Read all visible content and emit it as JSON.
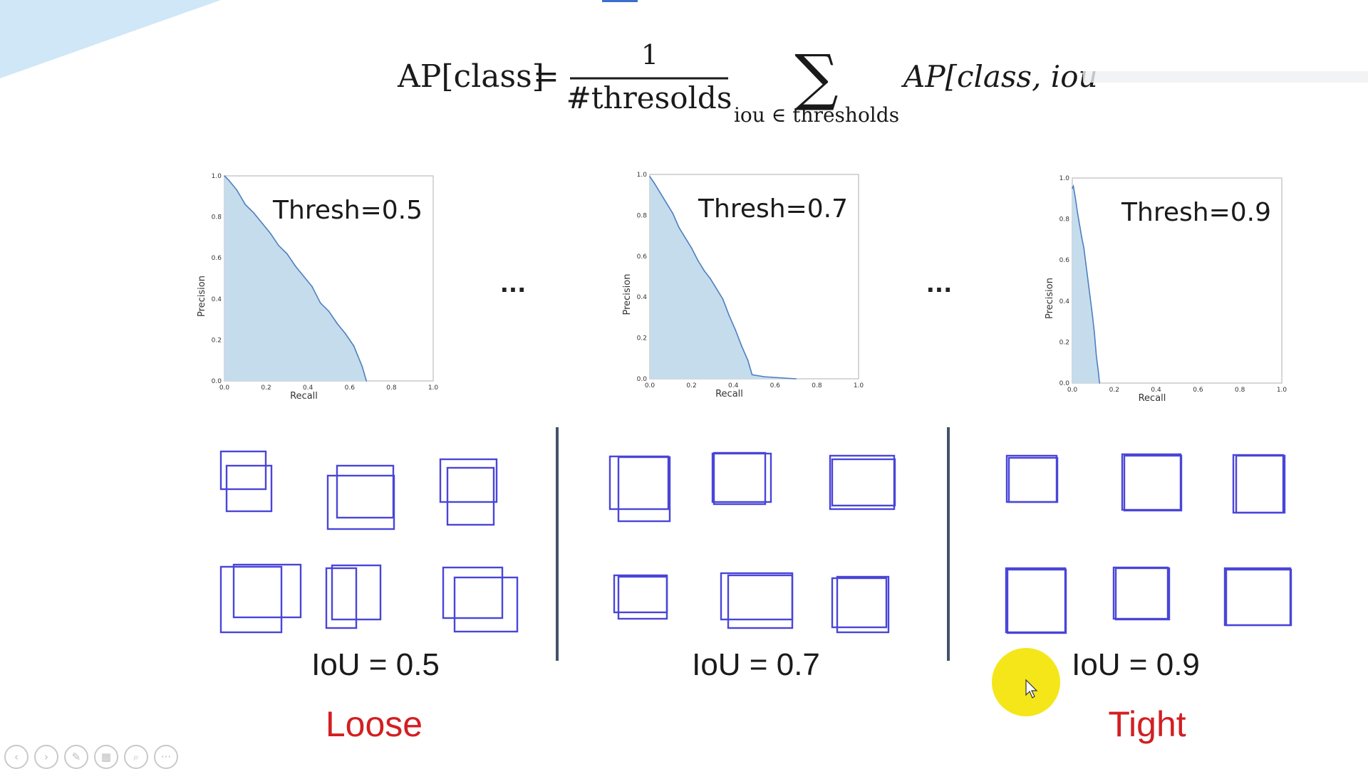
{
  "formula": {
    "lhs": "AP[class]",
    "equals": "=",
    "numerator": "1",
    "denominator": "#thresolds",
    "sum_symbol": "∑",
    "sum_subscript": "iou ∈ thresholds",
    "rhs": "AP[class, iou"
  },
  "ellipsis": [
    "...",
    "..."
  ],
  "chart_data": [
    {
      "type": "area",
      "title": "Thresh=0.5",
      "xlabel": "Recall",
      "ylabel": "Precision",
      "xlim": [
        0,
        1.0
      ],
      "ylim": [
        0,
        1.0
      ],
      "xticks": [
        "0.0",
        "0.2",
        "0.4",
        "0.6",
        "0.8",
        "1.0"
      ],
      "yticks": [
        "0.0",
        "0.2",
        "0.4",
        "0.6",
        "0.8",
        "1.0"
      ],
      "x": [
        0.0,
        0.02,
        0.06,
        0.1,
        0.14,
        0.18,
        0.22,
        0.26,
        0.3,
        0.34,
        0.38,
        0.42,
        0.46,
        0.5,
        0.54,
        0.58,
        0.62,
        0.66,
        0.68
      ],
      "y": [
        1.0,
        0.98,
        0.93,
        0.86,
        0.82,
        0.77,
        0.72,
        0.66,
        0.62,
        0.56,
        0.51,
        0.46,
        0.38,
        0.34,
        0.28,
        0.23,
        0.17,
        0.07,
        0.0
      ],
      "fill_color": "#c5dcec",
      "line_color": "#4d7fbf"
    },
    {
      "type": "area",
      "title": "Thresh=0.7",
      "xlabel": "Recall",
      "ylabel": "Precision",
      "xlim": [
        0,
        1.0
      ],
      "ylim": [
        0,
        1.0
      ],
      "xticks": [
        "0.0",
        "0.2",
        "0.4",
        "0.6",
        "0.8",
        "1.0"
      ],
      "yticks": [
        "0.0",
        "0.2",
        "0.4",
        "0.6",
        "0.8",
        "1.0"
      ],
      "x": [
        0.0,
        0.02,
        0.05,
        0.08,
        0.11,
        0.14,
        0.17,
        0.2,
        0.23,
        0.26,
        0.29,
        0.32,
        0.35,
        0.38,
        0.41,
        0.44,
        0.47,
        0.49,
        0.55,
        0.7
      ],
      "y": [
        0.99,
        0.96,
        0.91,
        0.86,
        0.81,
        0.74,
        0.69,
        0.64,
        0.58,
        0.53,
        0.49,
        0.44,
        0.39,
        0.31,
        0.24,
        0.16,
        0.09,
        0.02,
        0.01,
        0.0
      ],
      "fill_color": "#c5dcec",
      "line_color": "#4d7fbf"
    },
    {
      "type": "area",
      "title": "Thresh=0.9",
      "xlabel": "Recall",
      "ylabel": "Precision",
      "xlim": [
        0,
        1.0
      ],
      "ylim": [
        0,
        1.0
      ],
      "xticks": [
        "0.0",
        "0.2",
        "0.4",
        "0.6",
        "0.8",
        "1.0"
      ],
      "yticks": [
        "0.0",
        "0.2",
        "0.4",
        "0.6",
        "0.8",
        "1.0"
      ],
      "x": [
        0.0,
        0.005,
        0.015,
        0.025,
        0.035,
        0.045,
        0.055,
        0.065,
        0.075,
        0.085,
        0.095,
        0.105,
        0.115,
        0.125,
        0.13
      ],
      "y": [
        0.95,
        0.96,
        0.9,
        0.83,
        0.77,
        0.71,
        0.66,
        0.58,
        0.5,
        0.42,
        0.34,
        0.25,
        0.13,
        0.05,
        0.0
      ],
      "fill_color": "#c5dcec",
      "line_color": "#4d7fbf"
    }
  ],
  "iou_groups": [
    {
      "label": "IoU = 0.5",
      "iou": 0.5
    },
    {
      "label": "IoU = 0.7",
      "iou": 0.7
    },
    {
      "label": "IoU = 0.9",
      "iou": 0.9
    }
  ],
  "captions": {
    "loose": "Loose",
    "tight": "Tight"
  },
  "colors": {
    "box_stroke": "#4a45d8",
    "divider": "#44536b",
    "caption_red": "#d21f22",
    "pointer_highlight": "#f5e61a",
    "corner_accent": "#cfe7f7"
  },
  "controls": [
    {
      "name": "previous-slide-button",
      "icon": "‹"
    },
    {
      "name": "next-slide-button",
      "icon": "›"
    },
    {
      "name": "pen-tool-button",
      "icon": "✎"
    },
    {
      "name": "slide-sorter-button",
      "icon": "▦"
    },
    {
      "name": "zoom-button",
      "icon": "⌕"
    },
    {
      "name": "more-options-button",
      "icon": "···"
    }
  ]
}
